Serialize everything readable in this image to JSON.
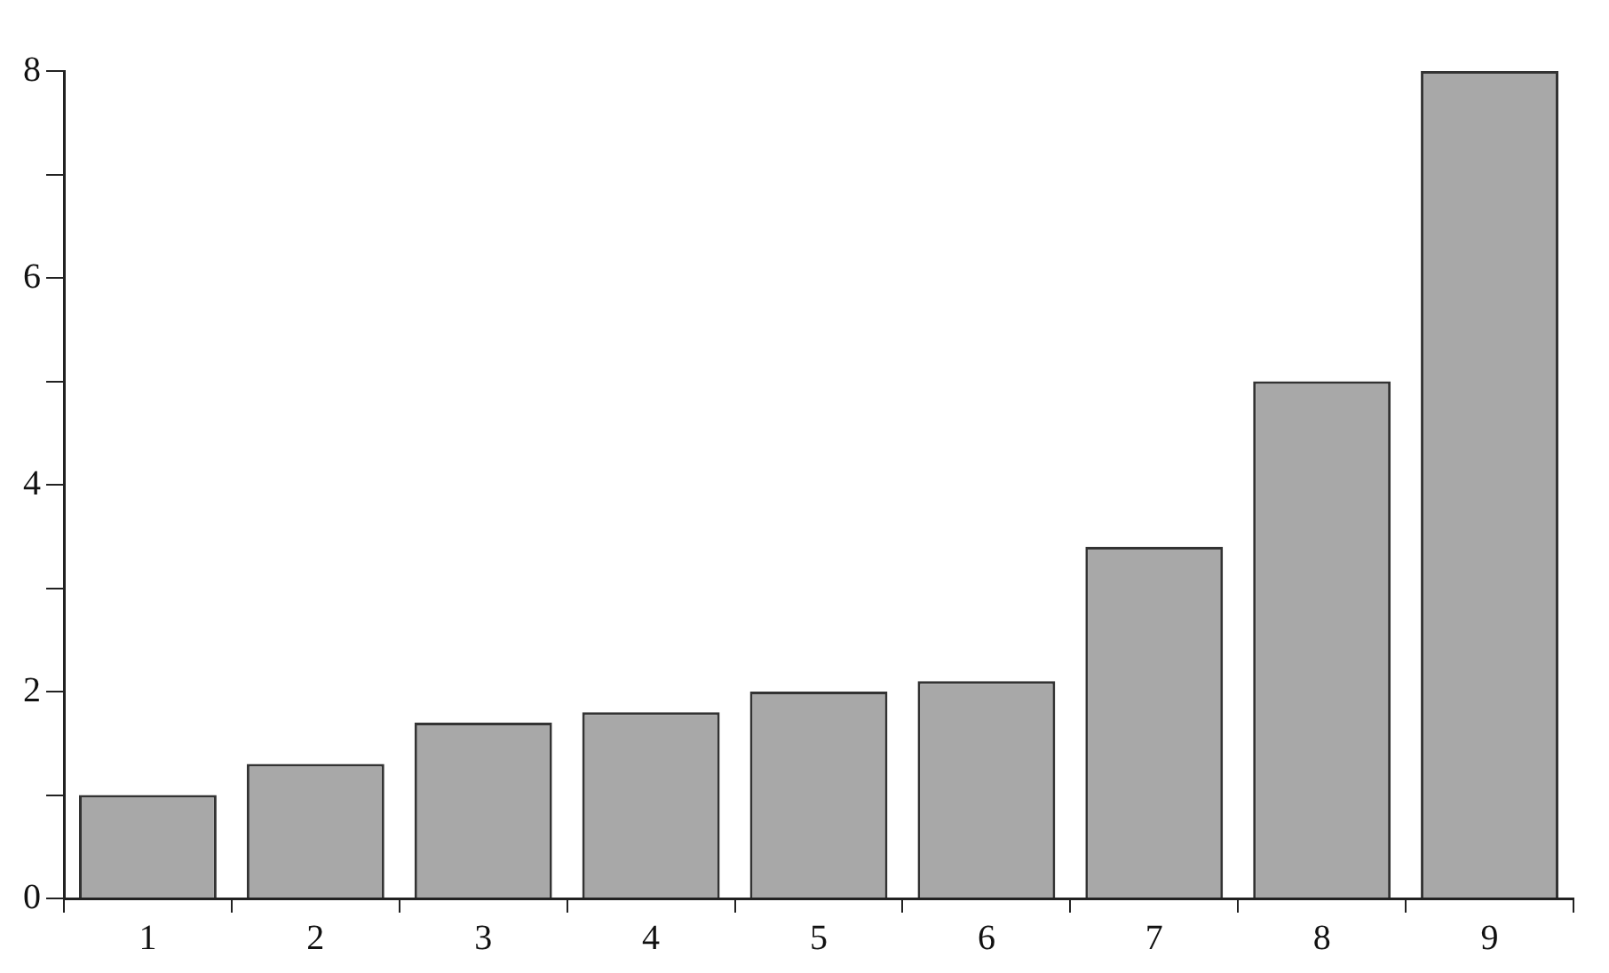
{
  "chart_data": {
    "type": "bar",
    "categories": [
      "1",
      "2",
      "3",
      "4",
      "5",
      "6",
      "7",
      "8",
      "9"
    ],
    "values": [
      1.0,
      1.3,
      1.7,
      1.8,
      2.0,
      2.1,
      3.4,
      5.0,
      8.0
    ],
    "color": "#a8a8a8",
    "ylim": [
      0,
      8
    ],
    "yticks": [
      0,
      {
        "value": 1,
        "label": null
      },
      2,
      {
        "value": 3,
        "label": null
      },
      4,
      {
        "value": 5,
        "label": null
      },
      6,
      {
        "value": 7,
        "label": null
      },
      8
    ],
    "grid": false,
    "legend": false
  }
}
